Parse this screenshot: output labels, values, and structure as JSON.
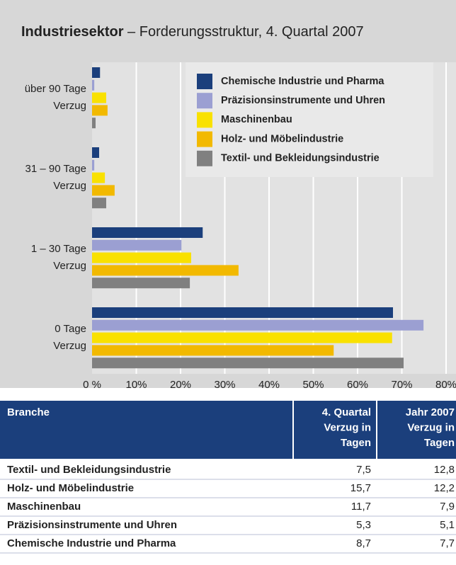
{
  "chart_data": {
    "type": "hbar",
    "title": "Industriesektor",
    "subtitle": "– Forderungsstruktur, 4. Quartal 2007",
    "categories": [
      [
        "über 90 Tage",
        "Verzug"
      ],
      [
        "31 – 90 Tage",
        "Verzug"
      ],
      [
        "1 – 30 Tage",
        "Verzug"
      ],
      [
        "0 Tage",
        "Verzug"
      ]
    ],
    "series": [
      {
        "name": "Chemische Industrie und Pharma",
        "color": "#1b3f7c",
        "values": [
          1.8,
          1.6,
          25,
          68
        ]
      },
      {
        "name": "Präzisionsinstrumente und Uhren",
        "color": "#9b9fd2",
        "values": [
          0.5,
          0.5,
          20.2,
          74.9
        ]
      },
      {
        "name": "Maschinenbau",
        "color": "#f9e100",
        "values": [
          3.2,
          2.9,
          22.4,
          67.8
        ]
      },
      {
        "name": "Holz- und Möbelindustrie",
        "color": "#f2b900",
        "values": [
          3.5,
          5.1,
          33.1,
          54.6
        ]
      },
      {
        "name": "Textil- und Bekleidungsindustrie",
        "color": "#808080",
        "values": [
          0.8,
          3.2,
          22.1,
          70.4
        ]
      }
    ],
    "xlim": [
      0,
      80
    ],
    "xticks": [
      {
        "value": 0,
        "label": "0 %"
      },
      {
        "value": 10,
        "label": "10%"
      },
      {
        "value": 20,
        "label": "20%"
      },
      {
        "value": 30,
        "label": "30%"
      },
      {
        "value": 40,
        "label": "40%"
      },
      {
        "value": 50,
        "label": "50%"
      },
      {
        "value": 60,
        "label": "60%"
      },
      {
        "value": 70,
        "label": "70%"
      },
      {
        "value": 80,
        "label": "80%"
      }
    ],
    "grid": true,
    "legend": "upper right"
  },
  "table": {
    "header": [
      [
        "Branche"
      ],
      [
        "4. Quartal",
        "Verzug in",
        "Tagen"
      ],
      [
        "Jahr 2007",
        "Verzug in",
        "Tagen"
      ]
    ],
    "rows": [
      [
        "Textil- und Bekleidungsindustrie",
        "7,5",
        "12,8"
      ],
      [
        "Holz- und Möbelindustrie",
        "15,7",
        "12,2"
      ],
      [
        "Maschinenbau",
        "11,7",
        "7,9"
      ],
      [
        "Präzisionsinstrumente und Uhren",
        "5,3",
        "5,1"
      ],
      [
        "Chemische Industrie und Pharma",
        "8,7",
        "7,7"
      ]
    ]
  }
}
